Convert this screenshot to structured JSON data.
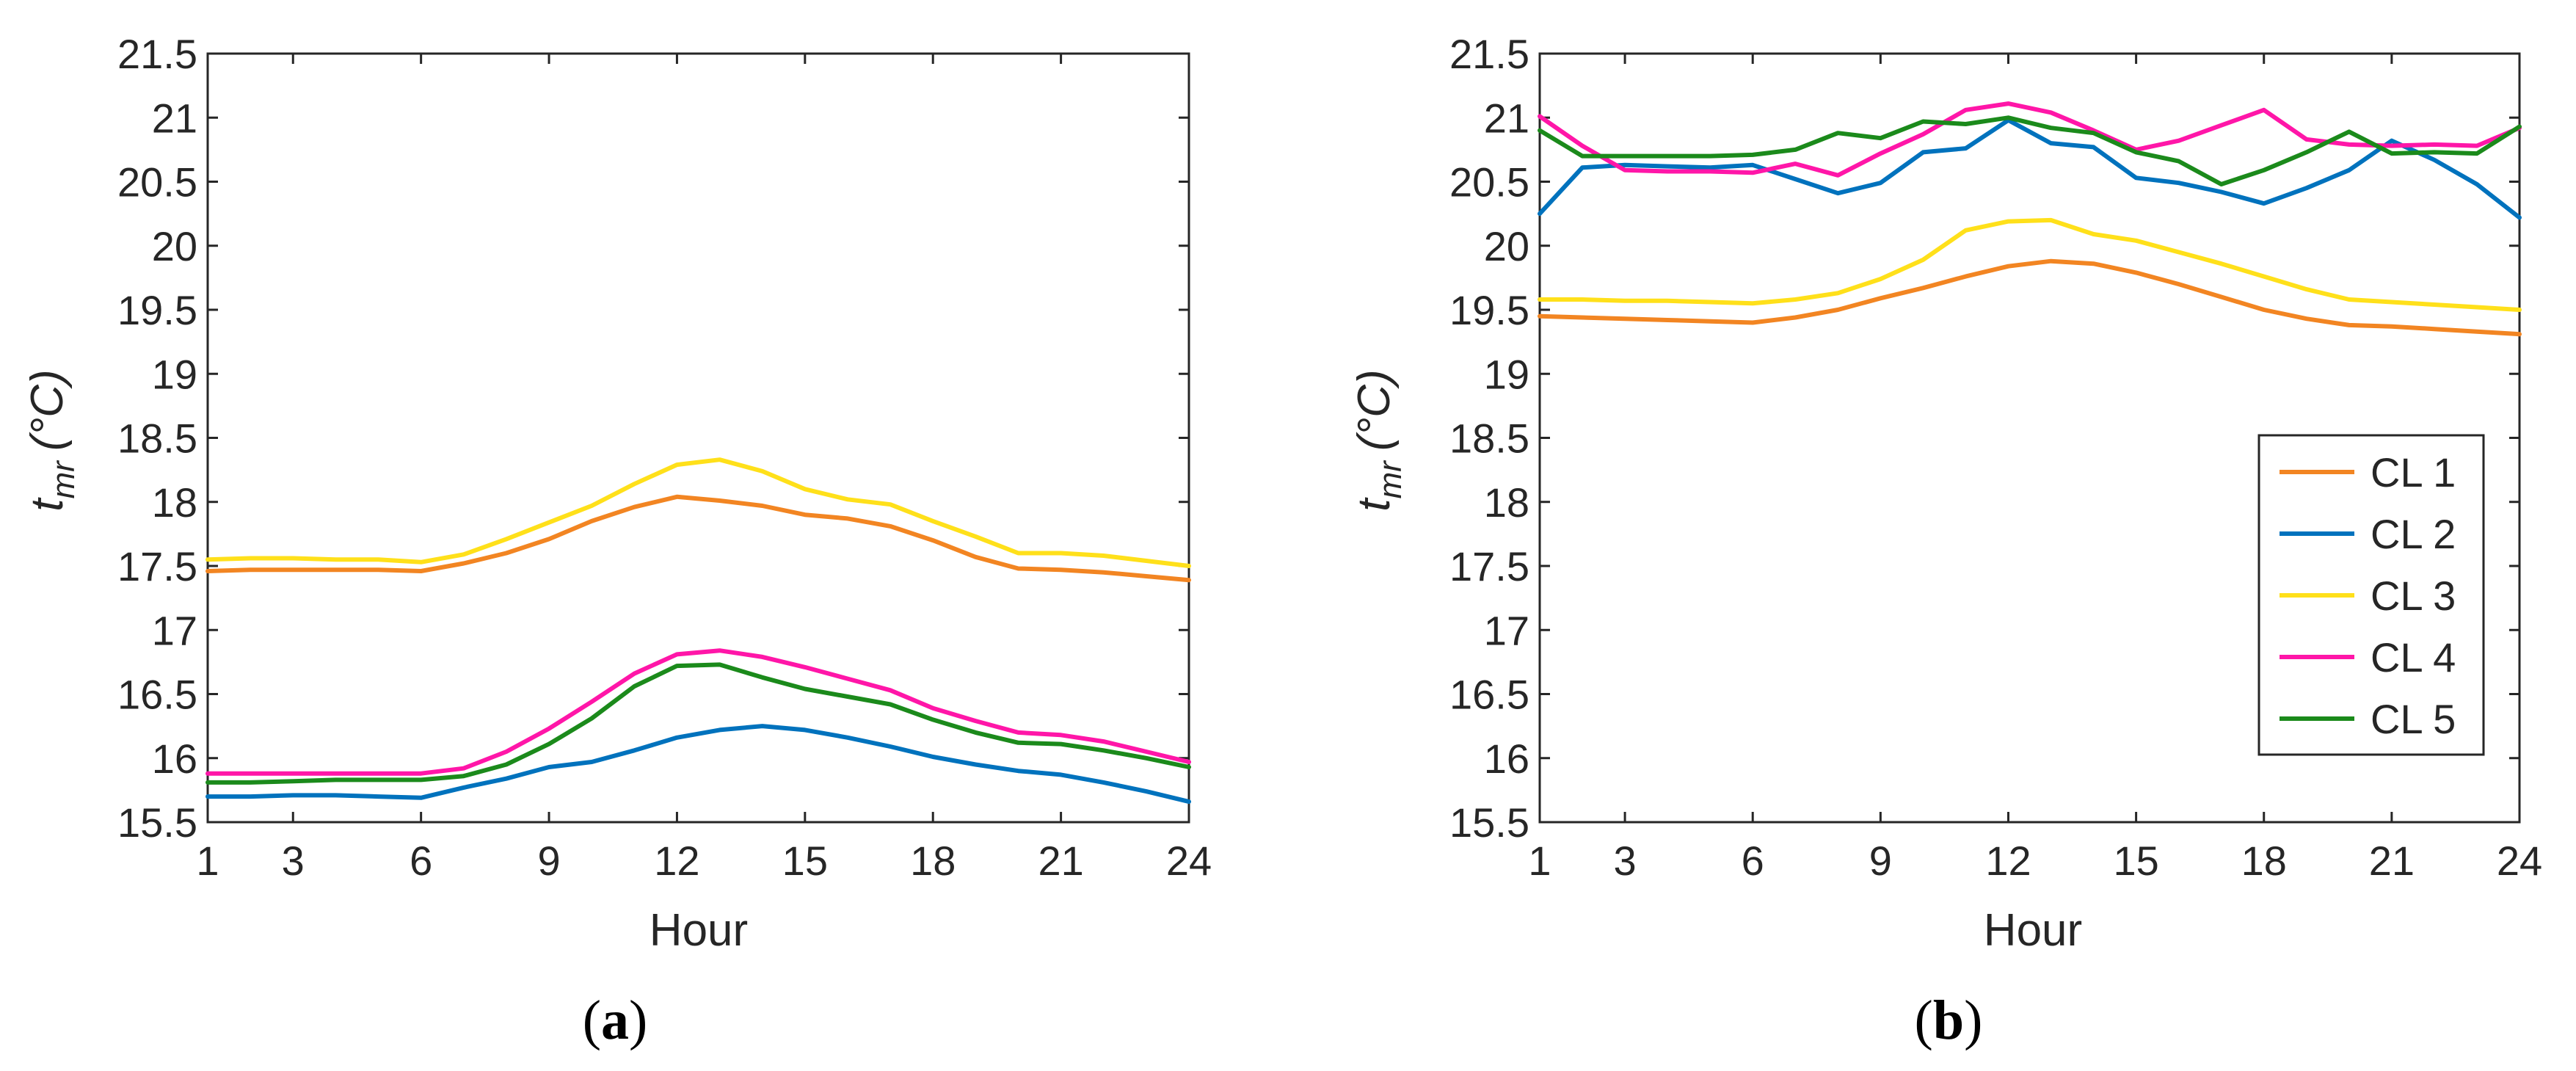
{
  "chart_data": [
    {
      "type": "line",
      "panel_label": "a",
      "title": "",
      "xlabel": "Hour",
      "ylabel": {
        "base": "t",
        "sub": "mr",
        "unit": "(°C)"
      },
      "xlim": [
        1,
        24
      ],
      "ylim": [
        15.5,
        21.5
      ],
      "xticks": [
        "1",
        "3",
        "6",
        "9",
        "12",
        "15",
        "18",
        "21",
        "24"
      ],
      "yticks": [
        "15.5",
        "16",
        "16.5",
        "17",
        "17.5",
        "18",
        "18.5",
        "19",
        "19.5",
        "20",
        "20.5",
        "21",
        "21.5"
      ],
      "grid": false,
      "legend": null,
      "x": [
        1,
        2,
        3,
        4,
        5,
        6,
        7,
        8,
        9,
        10,
        11,
        12,
        13,
        14,
        15,
        16,
        17,
        18,
        19,
        20,
        21,
        22,
        23,
        24
      ],
      "series": [
        {
          "name": "CL 1",
          "color": "#F28522",
          "values": [
            17.46,
            17.47,
            17.47,
            17.47,
            17.47,
            17.46,
            17.52,
            17.6,
            17.71,
            17.85,
            17.96,
            18.04,
            18.01,
            17.97,
            17.9,
            17.87,
            17.81,
            17.7,
            17.57,
            17.48,
            17.47,
            17.45,
            17.42,
            17.39
          ]
        },
        {
          "name": "CL 2",
          "color": "#0072BD",
          "values": [
            15.7,
            15.7,
            15.71,
            15.71,
            15.7,
            15.69,
            15.77,
            15.84,
            15.93,
            15.97,
            16.06,
            16.16,
            16.22,
            16.25,
            16.22,
            16.16,
            16.09,
            16.01,
            15.95,
            15.9,
            15.87,
            15.81,
            15.74,
            15.66
          ]
        },
        {
          "name": "CL 3",
          "color": "#FFE01A",
          "values": [
            17.55,
            17.56,
            17.56,
            17.55,
            17.55,
            17.53,
            17.59,
            17.71,
            17.84,
            17.97,
            18.14,
            18.29,
            18.33,
            18.24,
            18.1,
            18.02,
            17.98,
            17.85,
            17.73,
            17.6,
            17.6,
            17.58,
            17.54,
            17.5
          ]
        },
        {
          "name": "CL 4",
          "color": "#FF16A8",
          "values": [
            15.88,
            15.88,
            15.88,
            15.88,
            15.88,
            15.88,
            15.92,
            16.05,
            16.23,
            16.44,
            16.66,
            16.81,
            16.84,
            16.79,
            16.71,
            16.62,
            16.53,
            16.39,
            16.29,
            16.2,
            16.18,
            16.13,
            16.05,
            15.97
          ]
        },
        {
          "name": "CL 5",
          "color": "#1B8A1B",
          "values": [
            15.81,
            15.81,
            15.82,
            15.83,
            15.83,
            15.83,
            15.86,
            15.95,
            16.11,
            16.31,
            16.56,
            16.72,
            16.73,
            16.63,
            16.54,
            16.48,
            16.42,
            16.3,
            16.2,
            16.12,
            16.11,
            16.06,
            16.0,
            15.93
          ]
        }
      ]
    },
    {
      "type": "line",
      "panel_label": "b",
      "title": "",
      "xlabel": "Hour",
      "ylabel": {
        "base": "t",
        "sub": "mr",
        "unit": "(°C)"
      },
      "xlim": [
        1,
        24
      ],
      "ylim": [
        15.5,
        21.5
      ],
      "xticks": [
        "1",
        "3",
        "6",
        "9",
        "12",
        "15",
        "18",
        "21",
        "24"
      ],
      "yticks": [
        "15.5",
        "16",
        "16.5",
        "17",
        "17.5",
        "18",
        "18.5",
        "19",
        "19.5",
        "20",
        "20.5",
        "21",
        "21.5"
      ],
      "grid": false,
      "legend": "right",
      "legend_entries": [
        "CL 1",
        "CL 2",
        "CL 3",
        "CL 4",
        "CL 5"
      ],
      "x": [
        1,
        2,
        3,
        4,
        5,
        6,
        7,
        8,
        9,
        10,
        11,
        12,
        13,
        14,
        15,
        16,
        17,
        18,
        19,
        20,
        21,
        22,
        23,
        24
      ],
      "series": [
        {
          "name": "CL 1",
          "color": "#F28522",
          "values": [
            19.45,
            19.44,
            19.43,
            19.42,
            19.41,
            19.4,
            19.44,
            19.5,
            19.59,
            19.67,
            19.76,
            19.84,
            19.88,
            19.86,
            19.79,
            19.7,
            19.6,
            19.5,
            19.43,
            19.38,
            19.37,
            19.35,
            19.33,
            19.31
          ]
        },
        {
          "name": "CL 2",
          "color": "#0072BD",
          "values": [
            20.25,
            20.61,
            20.63,
            20.62,
            20.61,
            20.63,
            20.52,
            20.41,
            20.49,
            20.73,
            20.76,
            20.98,
            20.8,
            20.77,
            20.53,
            20.49,
            20.42,
            20.33,
            20.45,
            20.59,
            20.82,
            20.67,
            20.48,
            20.22
          ]
        },
        {
          "name": "CL 3",
          "color": "#FFE01A",
          "values": [
            19.58,
            19.58,
            19.57,
            19.57,
            19.56,
            19.55,
            19.58,
            19.63,
            19.74,
            19.89,
            20.12,
            20.19,
            20.2,
            20.09,
            20.04,
            19.95,
            19.86,
            19.76,
            19.66,
            19.58,
            19.56,
            19.54,
            19.52,
            19.5
          ]
        },
        {
          "name": "CL 4",
          "color": "#FF16A8",
          "values": [
            21.01,
            20.78,
            20.59,
            20.58,
            20.58,
            20.57,
            20.64,
            20.55,
            20.72,
            20.87,
            21.06,
            21.11,
            21.04,
            20.9,
            20.75,
            20.82,
            20.94,
            21.06,
            20.83,
            20.79,
            20.78,
            20.79,
            20.78,
            20.92
          ]
        },
        {
          "name": "CL 5",
          "color": "#1B8A1B",
          "values": [
            20.9,
            20.7,
            20.7,
            20.7,
            20.7,
            20.71,
            20.75,
            20.88,
            20.84,
            20.97,
            20.95,
            21.0,
            20.92,
            20.88,
            20.73,
            20.66,
            20.48,
            20.59,
            20.73,
            20.89,
            20.72,
            20.73,
            20.72,
            20.93
          ]
        }
      ]
    }
  ]
}
